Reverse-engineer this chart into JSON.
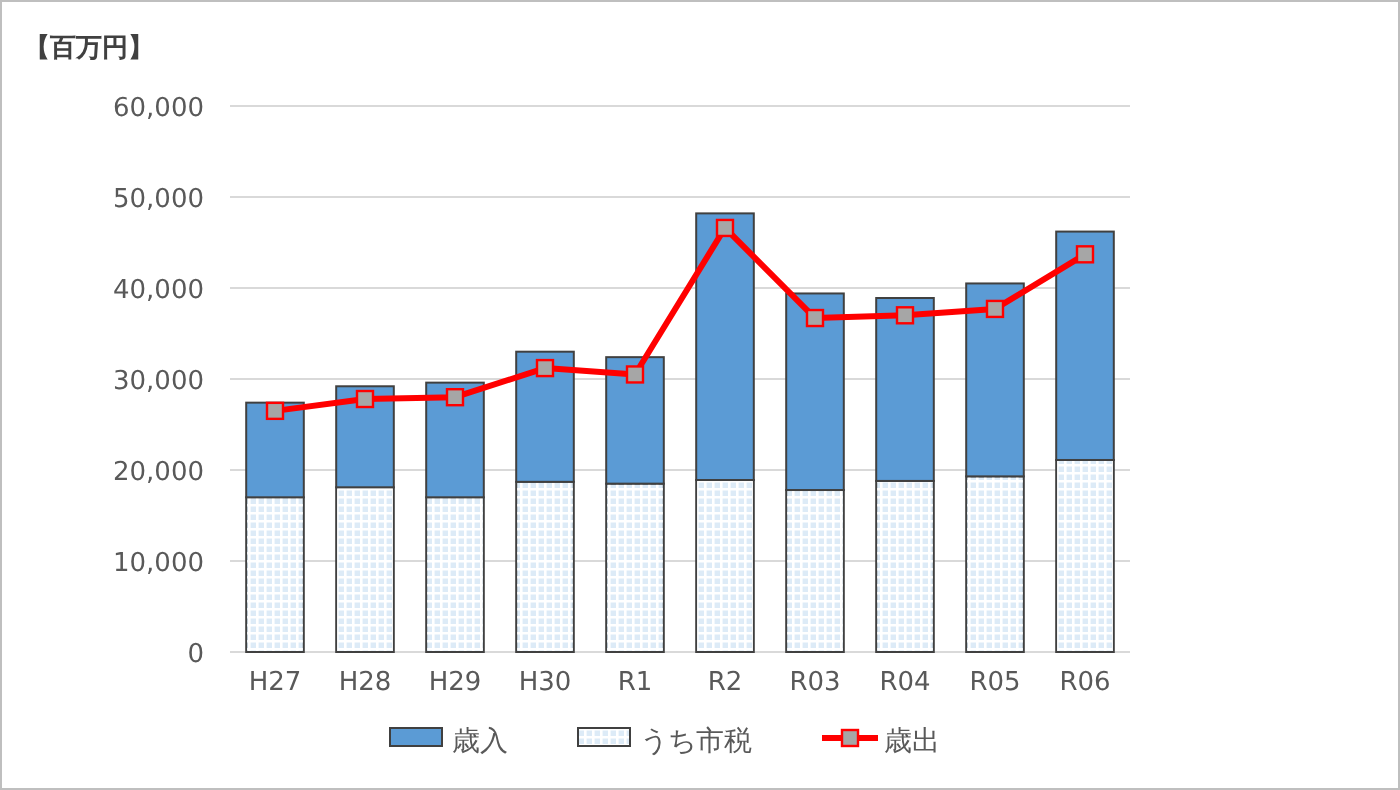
{
  "chart_data": {
    "type": "bar",
    "ylabel": "【百万円】",
    "stacked": true,
    "grid": "y",
    "legend": "bottom",
    "categories": [
      "H27",
      "H28",
      "H29",
      "H30",
      "R1",
      "R2",
      "R03",
      "R04",
      "R05",
      "R06"
    ],
    "ylim": [
      0,
      60000
    ],
    "yticks": [
      {
        "value": 0,
        "label": "0"
      },
      {
        "value": 10000,
        "label": "10,000"
      },
      {
        "value": 20000,
        "label": "20,000"
      },
      {
        "value": 30000,
        "label": "30,000"
      },
      {
        "value": 40000,
        "label": "40,000"
      },
      {
        "value": 50000,
        "label": "50,000"
      },
      {
        "value": 60000,
        "label": "60,000"
      }
    ],
    "series": [
      {
        "name": "うち市税",
        "color": "#ddebf7",
        "values": [
          17000,
          18100,
          17000,
          18700,
          18500,
          18900,
          17800,
          18800,
          19300,
          21100
        ]
      },
      {
        "name": "歳入",
        "color": "#5b9bd5",
        "values": [
          10400,
          11100,
          12600,
          14300,
          13900,
          29300,
          21600,
          20100,
          21200,
          25100
        ]
      },
      {
        "name": "歳出",
        "type": "line",
        "color": "#ff0000",
        "marker": "square",
        "values": [
          26500,
          27800,
          28000,
          31200,
          30500,
          46600,
          36700,
          37000,
          37700,
          43700
        ]
      }
    ]
  }
}
